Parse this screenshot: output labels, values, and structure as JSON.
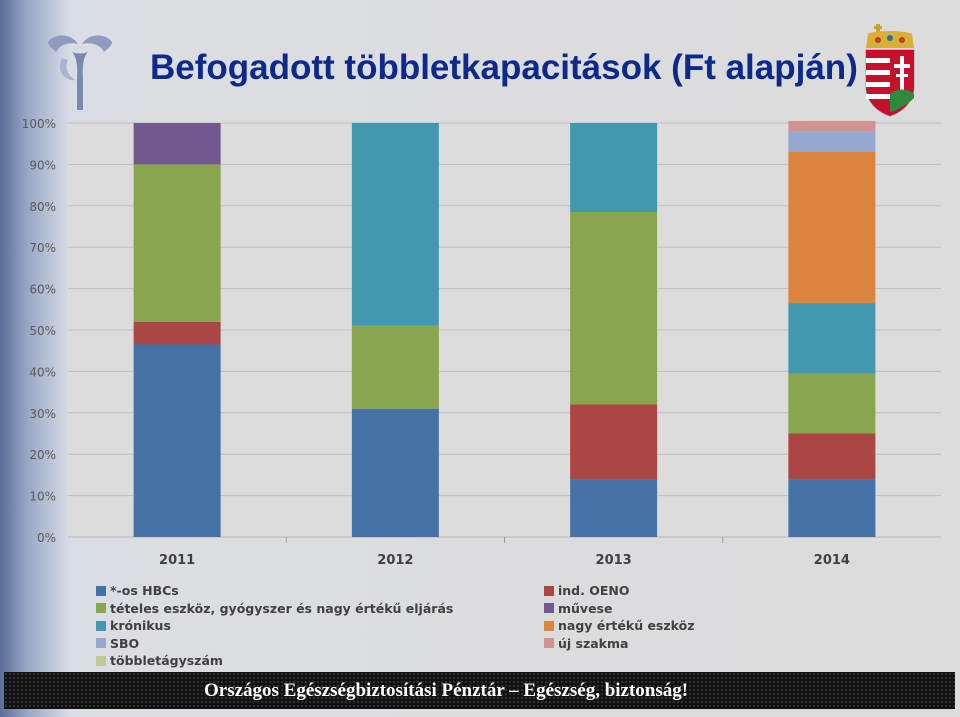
{
  "title": "Befogadott többletkapacitások (Ft alapján)",
  "footer": "Országos Egészségbiztosítási Pénztár – Egészség, biztonság!",
  "logos": {
    "left": "oep-logo",
    "right": "hungarian-coat-of-arms"
  },
  "chart_data": {
    "type": "bar",
    "stacked": true,
    "percent": true,
    "categories": [
      "2011",
      "2012",
      "2013",
      "2014"
    ],
    "ylim": [
      0,
      100
    ],
    "yticks": [
      "0%",
      "10%",
      "20%",
      "30%",
      "40%",
      "50%",
      "60%",
      "70%",
      "80%",
      "90%",
      "100%"
    ],
    "grid": true,
    "legend_position": "bottom",
    "series": [
      {
        "name": "*-os HBCs",
        "color": "#4572a7",
        "values": [
          46.5,
          31,
          14,
          14
        ]
      },
      {
        "name": "ind. OENO",
        "color": "#aa4643",
        "values": [
          5.5,
          0,
          18,
          11
        ]
      },
      {
        "name": "tételes eszköz, gyógyszer és nagy értékű eljárás",
        "color": "#89a54e",
        "values": [
          38,
          20,
          46.5,
          14.5
        ]
      },
      {
        "name": "művese",
        "color": "#71588f",
        "values": [
          10,
          0,
          0,
          0
        ]
      },
      {
        "name": "krónikus",
        "color": "#4198af",
        "values": [
          0,
          49,
          21.5,
          17
        ]
      },
      {
        "name": "nagy értékű eszköz",
        "color": "#db843d",
        "values": [
          0,
          0,
          0,
          36.5
        ]
      },
      {
        "name": "SBO",
        "color": "#93a9cf",
        "values": [
          0,
          0,
          0,
          5
        ]
      },
      {
        "name": "új szakma",
        "color": "#d19392",
        "values": [
          0,
          0,
          0,
          2.5
        ]
      },
      {
        "name": "többletágyszám",
        "color": "#b9cd96",
        "values": [
          0,
          0,
          0,
          0
        ]
      }
    ]
  }
}
